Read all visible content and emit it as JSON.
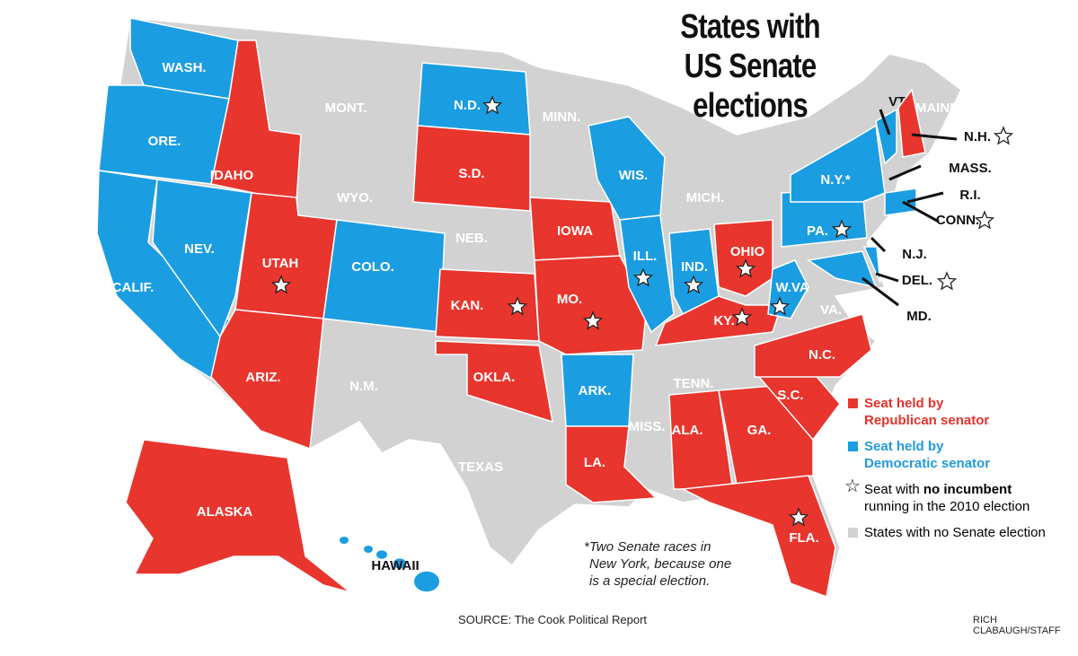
{
  "title": {
    "line1": "States with",
    "line2": "US Senate elections"
  },
  "colors": {
    "republican": "#e8352d",
    "democrat": "#1b9de2",
    "no_election": "#d2d2d3",
    "border": "#ffffff"
  },
  "legend": {
    "republican": {
      "line1": "Seat held by",
      "line2": "Republican senator"
    },
    "democrat": {
      "line1": "Seat held by",
      "line2": "Democratic senator"
    },
    "no_incumbent": {
      "pre": "Seat with ",
      "bold": "no incumbent",
      "line2": "running in the 2010 election",
      "icon": "star-outline-icon"
    },
    "no_election": "States with no Senate election"
  },
  "note": {
    "line1": "*Two Senate races in",
    "line2": "New York, because one",
    "line3": "is a special election."
  },
  "source": "SOURCE: The Cook Political Report",
  "credit": "RICH CLABAUGH/STAFF",
  "states": [
    {
      "label": "WASH.",
      "status": "democrat",
      "star": false
    },
    {
      "label": "ORE.",
      "status": "democrat",
      "star": false
    },
    {
      "label": "CALIF.",
      "status": "democrat",
      "star": false
    },
    {
      "label": "NEV.",
      "status": "democrat",
      "star": false
    },
    {
      "label": "IDAHO",
      "status": "republican",
      "star": false
    },
    {
      "label": "UTAH",
      "status": "republican",
      "star": true
    },
    {
      "label": "ARIZ.",
      "status": "republican",
      "star": false
    },
    {
      "label": "COLO.",
      "status": "democrat",
      "star": false
    },
    {
      "label": "N.D.",
      "status": "democrat",
      "star": true
    },
    {
      "label": "S.D.",
      "status": "republican",
      "star": false
    },
    {
      "label": "KAN.",
      "status": "republican",
      "star": true
    },
    {
      "label": "OKLA.",
      "status": "republican",
      "star": false
    },
    {
      "label": "IOWA",
      "status": "republican",
      "star": false
    },
    {
      "label": "MO.",
      "status": "republican",
      "star": true
    },
    {
      "label": "ARK.",
      "status": "democrat",
      "star": false
    },
    {
      "label": "LA.",
      "status": "republican",
      "star": false
    },
    {
      "label": "WIS.",
      "status": "democrat",
      "star": false
    },
    {
      "label": "ILL.",
      "status": "democrat",
      "star": true
    },
    {
      "label": "IND.",
      "status": "democrat",
      "star": true
    },
    {
      "label": "OHIO",
      "status": "republican",
      "star": true
    },
    {
      "label": "KY.",
      "status": "republican",
      "star": true
    },
    {
      "label": "W.VA",
      "status": "democrat",
      "star": true
    },
    {
      "label": "PA.",
      "status": "democrat",
      "star": true
    },
    {
      "label": "N.Y.*",
      "status": "democrat",
      "star": false
    },
    {
      "label": "VT.",
      "status": "democrat",
      "star": false
    },
    {
      "label": "N.H.",
      "status": "republican",
      "star": true
    },
    {
      "label": "CONN.",
      "status": "democrat",
      "star": true
    },
    {
      "label": "MD.",
      "status": "democrat",
      "star": false
    },
    {
      "label": "DEL.",
      "status": "democrat",
      "star": true
    },
    {
      "label": "ALA.",
      "status": "republican",
      "star": false
    },
    {
      "label": "GA.",
      "status": "republican",
      "star": false
    },
    {
      "label": "S.C.",
      "status": "republican",
      "star": false
    },
    {
      "label": "N.C.",
      "status": "republican",
      "star": false
    },
    {
      "label": "FLA.",
      "status": "republican",
      "star": true
    },
    {
      "label": "ALASKA",
      "status": "republican",
      "star": false
    },
    {
      "label": "HAWAII",
      "status": "democrat",
      "star": false
    }
  ],
  "no_election_states": [
    "MONT.",
    "WYO.",
    "NEB.",
    "MINN.",
    "MICH.",
    "N.M.",
    "TEXAS",
    "TENN.",
    "MISS.",
    "VA.",
    "MAINE",
    "MASS.",
    "R.I.",
    "N.J."
  ]
}
